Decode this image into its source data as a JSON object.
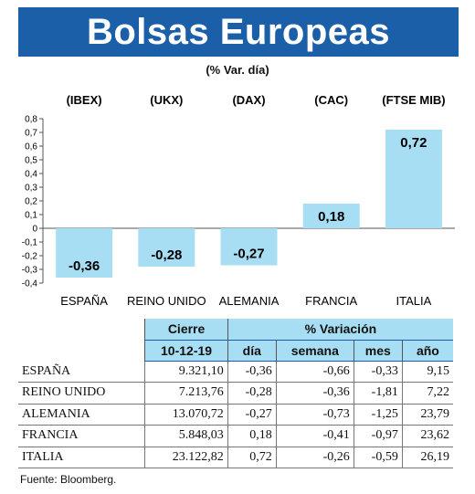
{
  "title": "Bolsas Europeas",
  "subtitle": "(% Var. día)",
  "chart_data": {
    "type": "bar",
    "indices": [
      "(IBEX)",
      "(UKX)",
      "(DAX)",
      "(CAC)",
      "(FTSE MIB)"
    ],
    "categories": [
      "ESPAÑA",
      "REINO UNIDO",
      "ALEMANIA",
      "FRANCIA",
      "ITALIA"
    ],
    "values": [
      -0.36,
      -0.28,
      -0.27,
      0.18,
      0.72
    ],
    "value_labels": [
      "-0,36",
      "-0,28",
      "-0,27",
      "0,18",
      "0,72"
    ],
    "yticks": [
      "0,8",
      "0,7",
      "0,6",
      "0,5",
      "0,4",
      "0,3",
      "0,2",
      "0,1",
      "0",
      "-0,1",
      "-0,2",
      "-0,3",
      "-0,4"
    ],
    "ylim": [
      -0.4,
      0.8
    ],
    "bar_color": "#a8def3",
    "grid": false
  },
  "table": {
    "header_cierre": "Cierre",
    "header_variacion": "% Variación",
    "date": "10-12-19",
    "cols": [
      "día",
      "semana",
      "mes",
      "año"
    ],
    "rows": [
      {
        "country": "ESPAÑA",
        "cierre": "9.321,10",
        "dia": "-0,36",
        "semana": "-0,66",
        "mes": "-0,33",
        "ano": "9,15"
      },
      {
        "country": "REINO UNIDO",
        "cierre": "7.213,76",
        "dia": "-0,28",
        "semana": "-0,36",
        "mes": "-1,81",
        "ano": "7,22"
      },
      {
        "country": "ALEMANIA",
        "cierre": "13.070,72",
        "dia": "-0,27",
        "semana": "-0,73",
        "mes": "-1,25",
        "ano": "23,79"
      },
      {
        "country": "FRANCIA",
        "cierre": "5.848,03",
        "dia": "0,18",
        "semana": "-0,41",
        "mes": "-0,97",
        "ano": "23,62"
      },
      {
        "country": "ITALIA",
        "cierre": "23.122,82",
        "dia": "0,72",
        "semana": "-0,26",
        "mes": "-0,59",
        "ano": "26,19"
      }
    ]
  },
  "source": "Fuente: Bloomberg.",
  "colors": {
    "banner": "#1b5fa8",
    "accent": "#a8def3"
  }
}
